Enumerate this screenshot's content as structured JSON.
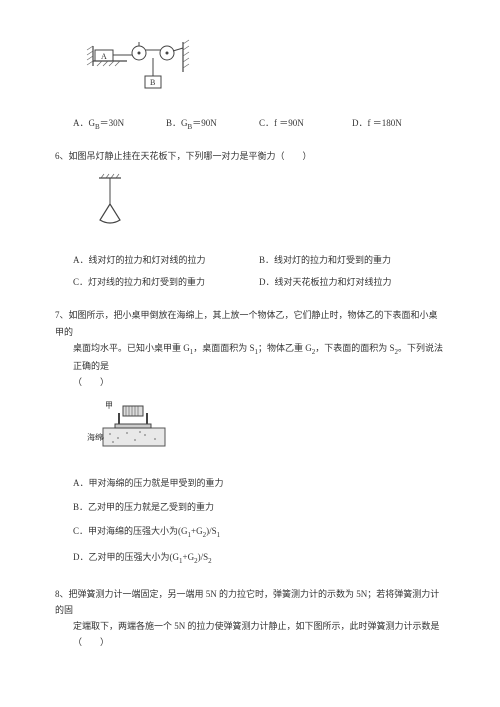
{
  "q5": {
    "figure": {
      "labelA": "A",
      "labelB": "B"
    },
    "options": {
      "A": "A．G<sub>B</sub>＝30N",
      "B": "B．G<sub>B</sub>＝90N",
      "C": "C．f ＝90N",
      "D": "D．f ＝180N"
    }
  },
  "q6": {
    "stem": "6、如图吊灯静止挂在天花板下，下列哪一对力是平衡力（　　）",
    "options": {
      "A": "A．线对灯的拉力和灯对线的拉力",
      "B": "B．线对灯的拉力和灯受到的重力",
      "C": "C．灯对线的拉力和灯受到的重力",
      "D": "D．线对天花板拉力和灯对线拉力"
    }
  },
  "q7": {
    "stem1": "7、如图所示，把小桌甲倒放在海绵上，其上放一个物体乙，它们静止时，物体乙的下表面和小桌甲的",
    "stem2": "桌面均水平。已知小桌甲重 G<sub>1</sub>，桌面面积为 S<sub>1</sub>；物体乙重 G<sub>2</sub>，下表面的面积为 S<sub>2</sub>。下列说法正确的是",
    "stem3": "（　　）",
    "figLabelLeft": "甲",
    "figLabelSponge": "海绵",
    "options": {
      "A": "A．甲对海绵的压力就是甲受到的重力",
      "B": "B．乙对甲的压力就是乙受到的重力",
      "C": "C．甲对海绵的压强大小为(G<sub>1</sub>+G<sub>2</sub>)/S<sub>1</sub>",
      "D": "D．乙对甲的压强大小为(G<sub>1</sub>+G<sub>2</sub>)/S<sub>2</sub>"
    }
  },
  "q8": {
    "stem1": "8、把弹簧测力计一端固定，另一端用 5N 的力拉它时，弹簧测力计的示数为 5N；若将弹簧测力计的固",
    "stem2": "定端取下，两端各施一个 5N 的拉力使弹簧测力计静止，如下图所示，此时弹簧测力计示数是（　　）"
  },
  "colors": {
    "bg": "#ffffff",
    "text": "#333333",
    "figline": "#444444",
    "fighatch": "#666666"
  },
  "fontsize": {
    "body": 9,
    "sub": 7
  }
}
